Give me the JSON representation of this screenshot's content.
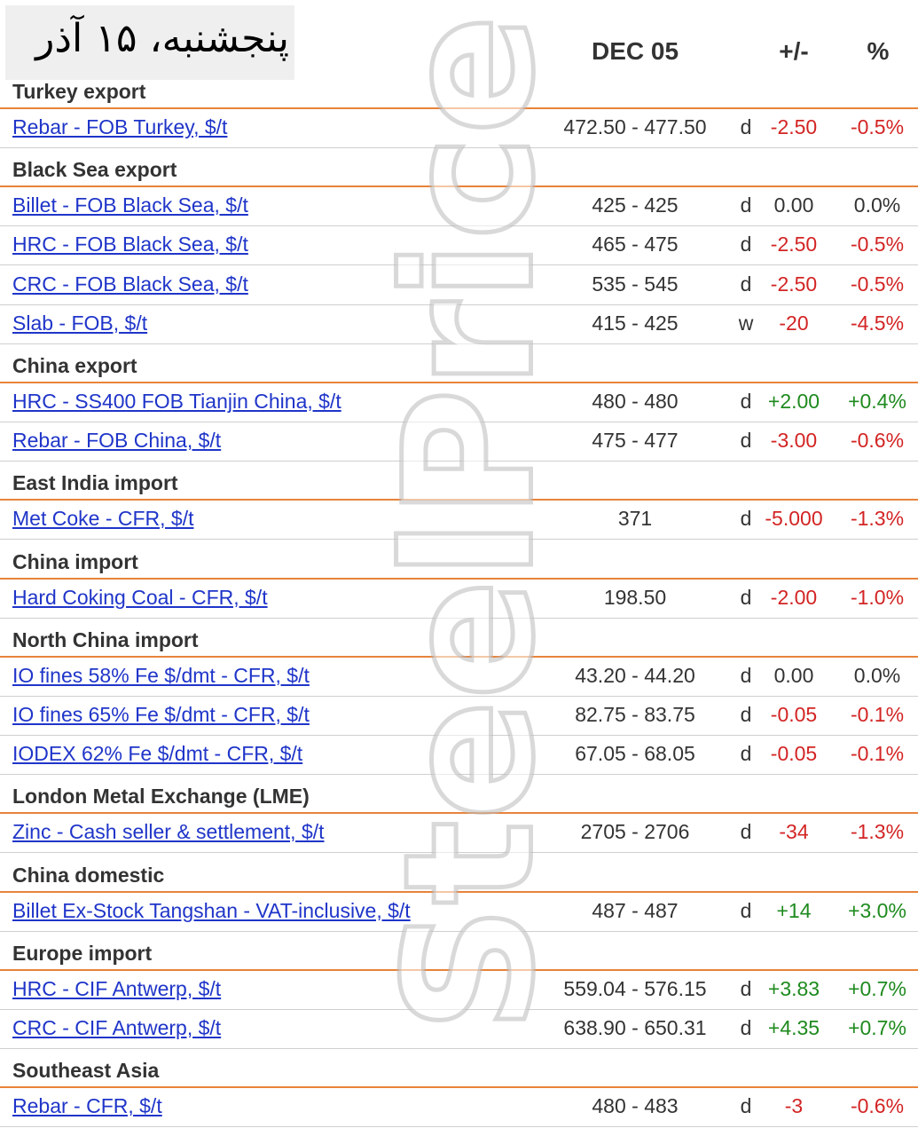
{
  "date_stamp": "پنجشنبه، ۱۵ آذر",
  "header": {
    "date": "DEC 05",
    "change": "+/-",
    "percent": "%"
  },
  "watermark": "SteelPrice",
  "colors": {
    "link": "#1f35c9",
    "negative": "#d32424",
    "positive": "#1e8a1e",
    "section_rule": "#e8833a"
  },
  "sections": [
    {
      "title": "Turkey export",
      "rows": [
        {
          "name": "Rebar - FOB Turkey, $/t",
          "range": "472.50 - 477.50",
          "freq": "d",
          "change": "-2.50",
          "percent": "-0.5%",
          "trend": "neg"
        }
      ]
    },
    {
      "title": "Black Sea export",
      "rows": [
        {
          "name": "Billet - FOB Black Sea, $/t",
          "range": "425 - 425",
          "freq": "d",
          "change": "0.00",
          "percent": "0.0%",
          "trend": "neu"
        },
        {
          "name": "HRC - FOB Black Sea, $/t",
          "range": "465 - 475",
          "freq": "d",
          "change": "-2.50",
          "percent": "-0.5%",
          "trend": "neg"
        },
        {
          "name": "CRC - FOB Black Sea, $/t",
          "range": "535 - 545",
          "freq": "d",
          "change": "-2.50",
          "percent": "-0.5%",
          "trend": "neg"
        },
        {
          "name": "Slab - FOB, $/t",
          "range": "415 - 425",
          "freq": "w",
          "change": "-20",
          "percent": "-4.5%",
          "trend": "neg"
        }
      ]
    },
    {
      "title": "China export",
      "rows": [
        {
          "name": "HRC - SS400 FOB Tianjin China, $/t",
          "range": "480 - 480",
          "freq": "d",
          "change": "+2.00",
          "percent": "+0.4%",
          "trend": "pos"
        },
        {
          "name": "Rebar - FOB China, $/t",
          "range": "475 - 477",
          "freq": "d",
          "change": "-3.00",
          "percent": "-0.6%",
          "trend": "neg"
        }
      ]
    },
    {
      "title": "East India import",
      "rows": [
        {
          "name": "Met Coke - CFR, $/t",
          "range": "371",
          "freq": "d",
          "change": "-5.000",
          "percent": "-1.3%",
          "trend": "neg"
        }
      ]
    },
    {
      "title": "China import",
      "rows": [
        {
          "name": "Hard Coking Coal - CFR, $/t",
          "range": "198.50",
          "freq": "d",
          "change": "-2.00",
          "percent": "-1.0%",
          "trend": "neg"
        }
      ]
    },
    {
      "title": "North China import",
      "rows": [
        {
          "name": "IO fines 58% Fe $/dmt - CFR, $/t",
          "range": "43.20 - 44.20",
          "freq": "d",
          "change": "0.00",
          "percent": "0.0%",
          "trend": "neu"
        },
        {
          "name": "IO fines 65% Fe $/dmt - CFR, $/t",
          "range": "82.75 - 83.75",
          "freq": "d",
          "change": "-0.05",
          "percent": "-0.1%",
          "trend": "neg"
        },
        {
          "name": "IODEX 62% Fe $/dmt - CFR, $/t",
          "range": "67.05 - 68.05",
          "freq": "d",
          "change": "-0.05",
          "percent": "-0.1%",
          "trend": "neg"
        }
      ]
    },
    {
      "title": "London Metal Exchange (LME)",
      "rows": [
        {
          "name": "Zinc - Cash seller & settlement, $/t",
          "range": "2705 - 2706",
          "freq": "d",
          "change": "-34",
          "percent": "-1.3%",
          "trend": "neg"
        }
      ]
    },
    {
      "title": "China domestic",
      "rows": [
        {
          "name": "Billet Ex-Stock Tangshan - VAT-inclusive, $/t",
          "range": "487 - 487",
          "freq": "d",
          "change": "+14",
          "percent": "+3.0%",
          "trend": "pos"
        }
      ]
    },
    {
      "title": "Europe import",
      "rows": [
        {
          "name": "HRC - CIF Antwerp, $/t",
          "range": "559.04 - 576.15",
          "freq": "d",
          "change": "+3.83",
          "percent": "+0.7%",
          "trend": "pos"
        },
        {
          "name": "CRC - CIF Antwerp, $/t",
          "range": "638.90 - 650.31",
          "freq": "d",
          "change": "+4.35",
          "percent": "+0.7%",
          "trend": "pos"
        }
      ]
    },
    {
      "title": "Southeast Asia",
      "rows": [
        {
          "name": "Rebar - CFR, $/t",
          "range": "480 - 483",
          "freq": "d",
          "change": "-3",
          "percent": "-0.6%",
          "trend": "neg"
        }
      ]
    }
  ]
}
